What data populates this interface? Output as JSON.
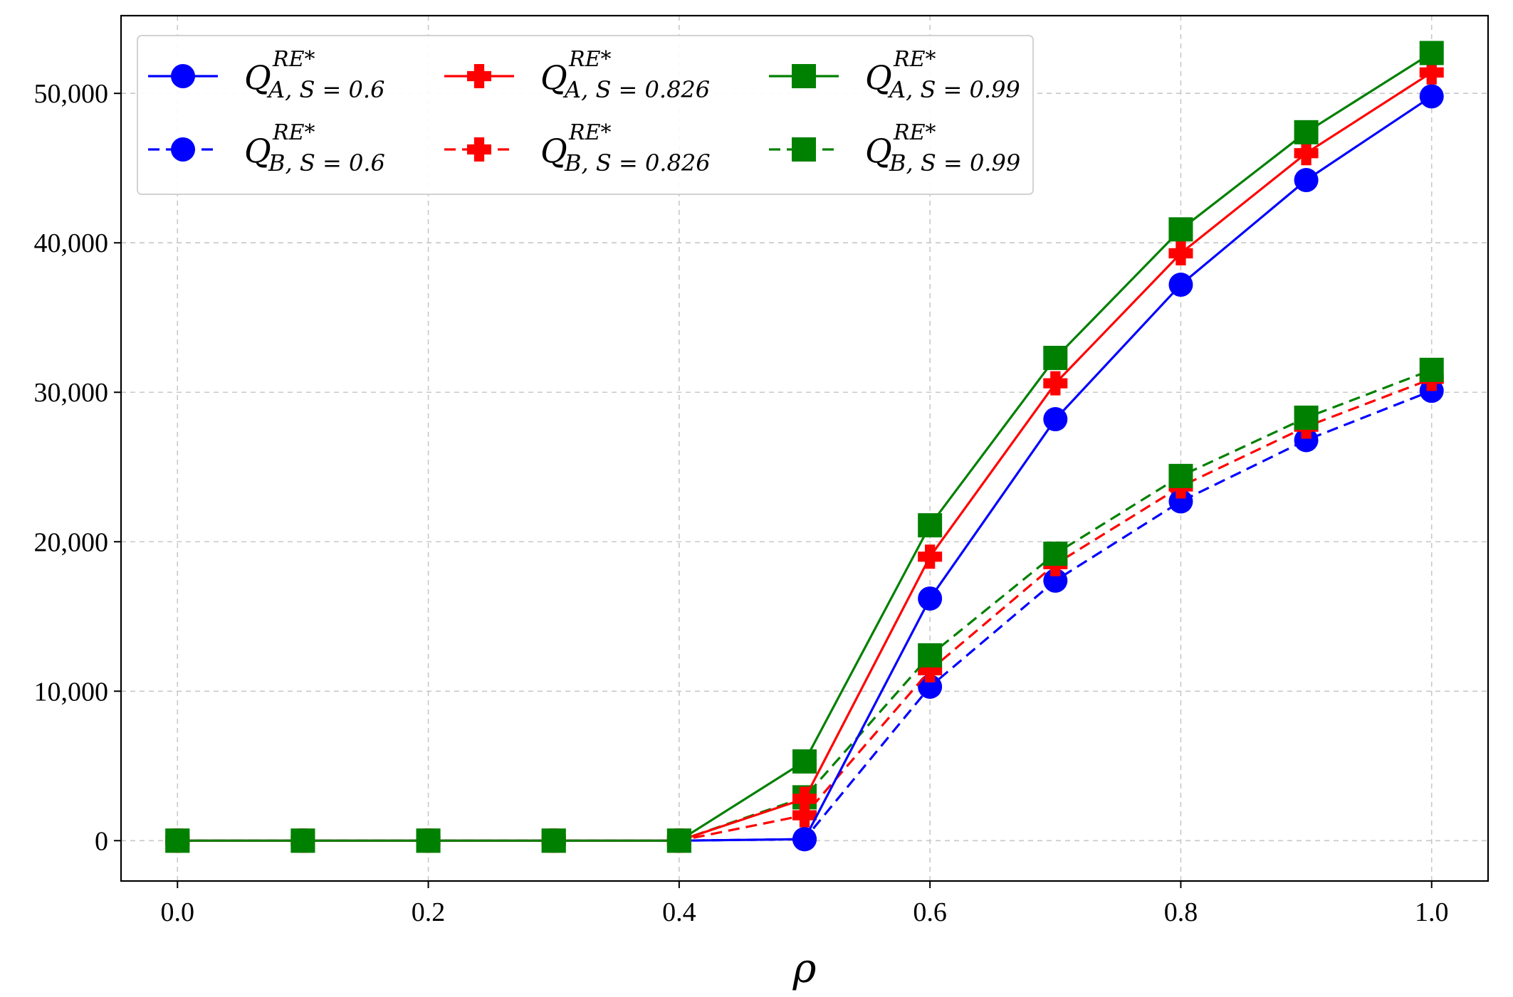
{
  "chart_data": {
    "type": "line",
    "title": "",
    "xlabel": "ρ",
    "ylabel": "",
    "xlim": [
      -0.045,
      1.045
    ],
    "ylim": [
      -2700,
      55200
    ],
    "xticks": [
      0.0,
      0.2,
      0.4,
      0.6,
      0.8,
      1.0
    ],
    "xtick_labels": [
      "0.0",
      "0.2",
      "0.4",
      "0.6",
      "0.8",
      "1.0"
    ],
    "yticks": [
      0,
      10000,
      20000,
      30000,
      40000,
      50000
    ],
    "ytick_labels": [
      "0",
      "10,000",
      "20,000",
      "30,000",
      "40,000",
      "50,000"
    ],
    "grid": true,
    "legend_position": "top-left",
    "x": [
      0.0,
      0.1,
      0.2,
      0.3,
      0.4,
      0.5,
      0.6,
      0.7,
      0.8,
      0.9,
      1.0
    ],
    "series": [
      {
        "name_main": "Q",
        "name_sup": "RE*",
        "name_sub": "A, S = 0.6",
        "color": "#0000ff",
        "linestyle": "solid",
        "marker": "circle",
        "values": [
          0,
          0,
          0,
          0,
          0,
          100,
          16200,
          28200,
          37200,
          44200,
          49800
        ]
      },
      {
        "name_main": "Q",
        "name_sup": "RE*",
        "name_sub": "B, S = 0.6",
        "color": "#0000ff",
        "linestyle": "dashed",
        "marker": "circle",
        "values": [
          0,
          0,
          0,
          0,
          0,
          100,
          10300,
          17400,
          22700,
          26800,
          30100
        ]
      },
      {
        "name_main": "Q",
        "name_sup": "RE*",
        "name_sub": "A, S = 0.826",
        "color": "#ff0000",
        "linestyle": "solid",
        "marker": "plus",
        "values": [
          0,
          0,
          0,
          0,
          0,
          2800,
          19000,
          30600,
          39300,
          46000,
          51400
        ]
      },
      {
        "name_main": "Q",
        "name_sup": "RE*",
        "name_sub": "B, S = 0.826",
        "color": "#ff0000",
        "linestyle": "dashed",
        "marker": "plus",
        "values": [
          0,
          0,
          0,
          0,
          0,
          1700,
          11400,
          18500,
          23700,
          27700,
          30900
        ]
      },
      {
        "name_main": "Q",
        "name_sup": "RE*",
        "name_sub": "A, S = 0.99",
        "color": "#008000",
        "linestyle": "solid",
        "marker": "square",
        "values": [
          0,
          0,
          0,
          0,
          0,
          5300,
          21100,
          32300,
          40900,
          47400,
          52700
        ]
      },
      {
        "name_main": "Q",
        "name_sup": "RE*",
        "name_sub": "B, S = 0.99",
        "color": "#008000",
        "linestyle": "dashed",
        "marker": "square",
        "values": [
          0,
          0,
          0,
          0,
          0,
          2900,
          12400,
          19200,
          24400,
          28300,
          31500
        ]
      }
    ]
  }
}
